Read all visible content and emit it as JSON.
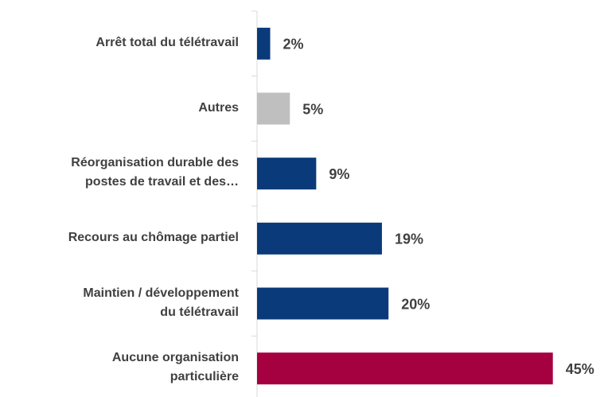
{
  "chart_data": {
    "type": "bar",
    "orientation": "horizontal",
    "categories": [
      "Arrêt total du télétravail",
      "Autres",
      "Réorganisation durable des\npostes de travail et des…",
      "Recours au chômage partiel",
      "Maintien / développement\ndu télétravail",
      "Aucune organisation\nparticulière"
    ],
    "values": [
      2,
      5,
      9,
      19,
      20,
      45
    ],
    "value_labels": [
      "2%",
      "5%",
      "9%",
      "19%",
      "20%",
      "45%"
    ],
    "colors": [
      "#0a3a7a",
      "#bfbfbf",
      "#0a3a7a",
      "#0a3a7a",
      "#0a3a7a",
      "#a50040"
    ],
    "xlim": [
      0,
      50
    ]
  }
}
